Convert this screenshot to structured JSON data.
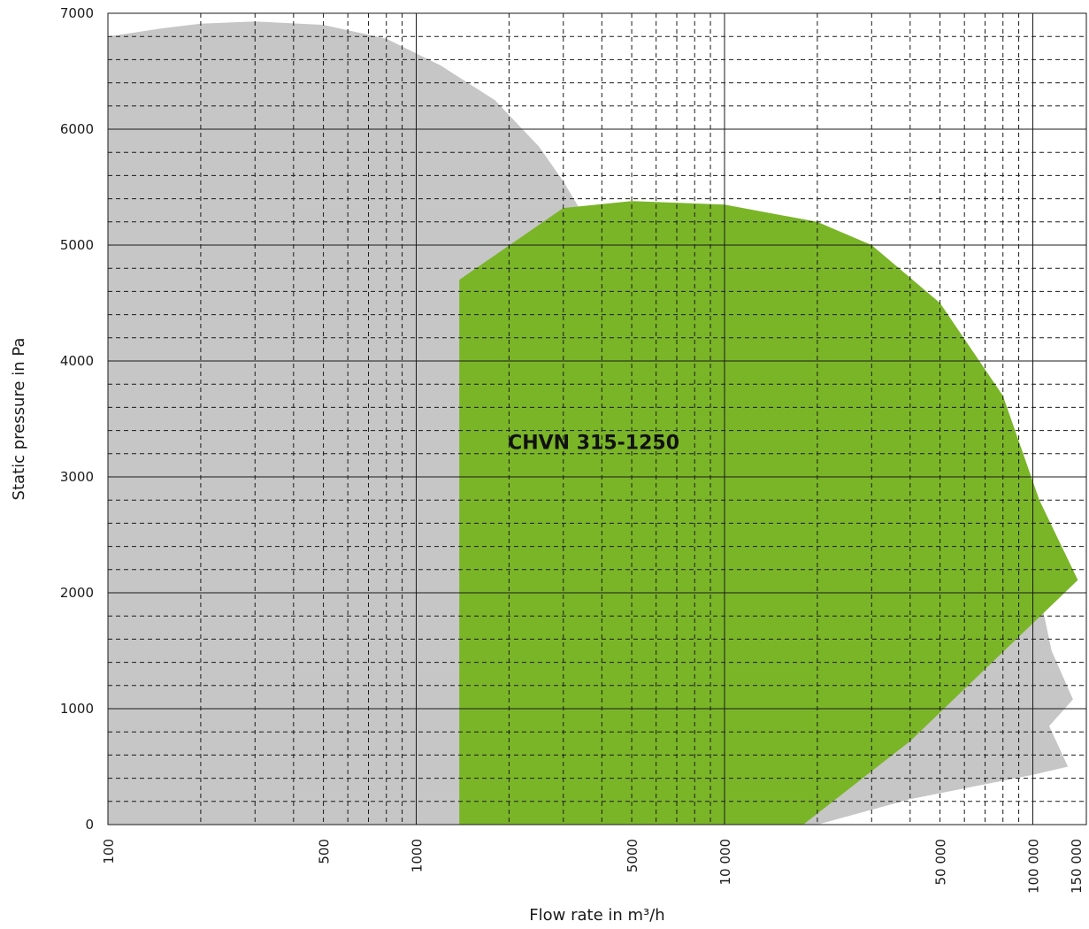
{
  "chart_data": {
    "type": "area",
    "title": "",
    "xlabel": "Flow rate in m³/h",
    "ylabel": "Static pressure in Pa",
    "x_scale": "log",
    "xlim": [
      100,
      150000
    ],
    "ylim": [
      0,
      7000
    ],
    "grid": true,
    "x_ticks": [
      {
        "value": 100,
        "label": "100"
      },
      {
        "value": 500,
        "label": "500"
      },
      {
        "value": 1000,
        "label": "1000"
      },
      {
        "value": 5000,
        "label": "5000"
      },
      {
        "value": 10000,
        "label": "10 000"
      },
      {
        "value": 50000,
        "label": "50 000"
      },
      {
        "value": 100000,
        "label": "100 000"
      },
      {
        "value": 150000,
        "label": "150 000"
      }
    ],
    "y_ticks": [
      {
        "value": 0,
        "label": "0"
      },
      {
        "value": 1000,
        "label": "1000"
      },
      {
        "value": 2000,
        "label": "2000"
      },
      {
        "value": 3000,
        "label": "3000"
      },
      {
        "value": 4000,
        "label": "4000"
      },
      {
        "value": 5000,
        "label": "5000"
      },
      {
        "value": 6000,
        "label": "6000"
      },
      {
        "value": 7000,
        "label": "7000"
      }
    ],
    "series": [
      {
        "color": "#c6c6c6",
        "points": [
          [
            100,
            0
          ],
          [
            100,
            6800
          ],
          [
            150,
            6870
          ],
          [
            200,
            6910
          ],
          [
            300,
            6930
          ],
          [
            500,
            6900
          ],
          [
            800,
            6780
          ],
          [
            1200,
            6550
          ],
          [
            1800,
            6250
          ],
          [
            2500,
            5850
          ],
          [
            3000,
            5550
          ],
          [
            3500,
            5250
          ],
          [
            3900,
            5000
          ],
          [
            14000,
            5000
          ],
          [
            30000,
            4400
          ],
          [
            50000,
            3700
          ],
          [
            80000,
            2800
          ],
          [
            100000,
            2300
          ],
          [
            105000,
            2000
          ],
          [
            115000,
            1500
          ],
          [
            135000,
            1080
          ],
          [
            113000,
            850
          ],
          [
            130000,
            500
          ],
          [
            100000,
            430
          ],
          [
            40000,
            220
          ],
          [
            20000,
            0
          ]
        ]
      },
      {
        "name": "CHVN 315-1250",
        "color": "#7ab528",
        "label_at": [
          5000,
          3300
        ],
        "points": [
          [
            1380,
            0
          ],
          [
            1380,
            4700
          ],
          [
            3000,
            5320
          ],
          [
            5000,
            5380
          ],
          [
            10000,
            5350
          ],
          [
            20000,
            5200
          ],
          [
            30000,
            5000
          ],
          [
            50000,
            4500
          ],
          [
            80000,
            3700
          ],
          [
            105000,
            2800
          ],
          [
            140000,
            2110
          ],
          [
            40000,
            720
          ],
          [
            18000,
            0
          ]
        ]
      }
    ]
  }
}
